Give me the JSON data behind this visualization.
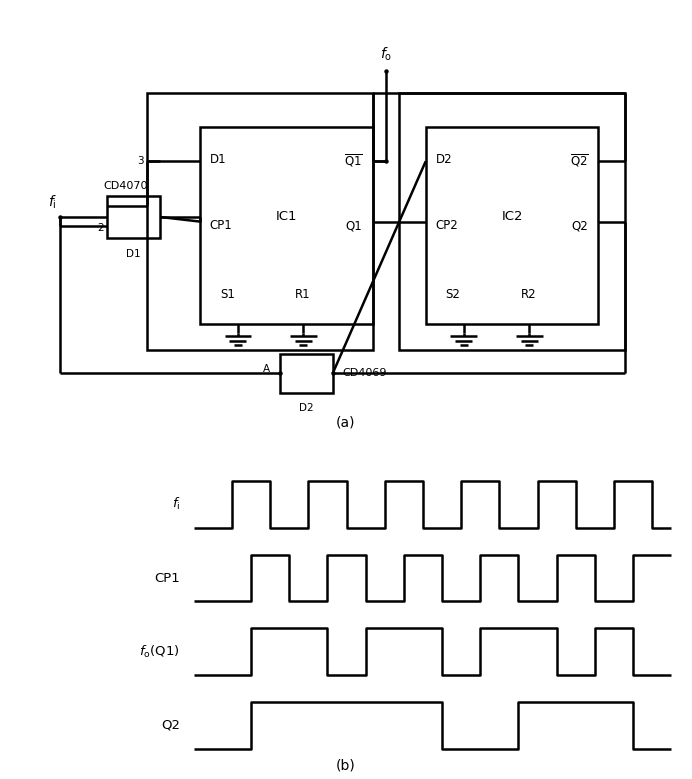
{
  "fig_width": 6.92,
  "fig_height": 7.79,
  "lw": 1.8,
  "thin_lw": 1.4,
  "signals": {
    "fi": [
      0,
      0,
      1,
      1,
      0,
      0,
      1,
      1,
      0,
      0,
      1,
      1,
      0,
      0,
      1,
      1,
      0,
      0,
      1,
      1,
      0,
      0,
      1,
      1,
      0
    ],
    "cp1": [
      0,
      0,
      0,
      1,
      1,
      0,
      0,
      1,
      1,
      0,
      0,
      1,
      1,
      0,
      0,
      1,
      1,
      0,
      0,
      1,
      1,
      0,
      0,
      1,
      1
    ],
    "foq1": [
      0,
      0,
      0,
      1,
      1,
      1,
      1,
      0,
      0,
      1,
      1,
      1,
      1,
      0,
      0,
      1,
      1,
      1,
      1,
      0,
      0,
      1,
      1,
      0,
      0
    ],
    "q2": [
      0,
      0,
      0,
      1,
      1,
      1,
      1,
      1,
      1,
      1,
      1,
      1,
      1,
      0,
      0,
      0,
      0,
      1,
      1,
      1,
      1,
      1,
      1,
      0,
      0
    ]
  }
}
